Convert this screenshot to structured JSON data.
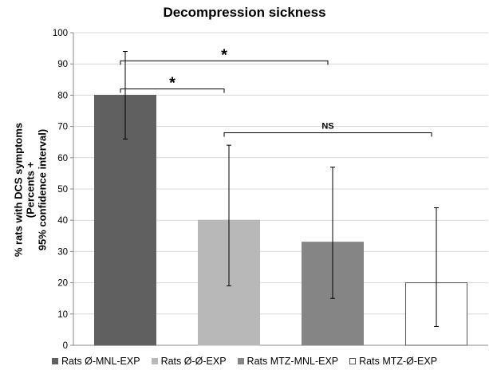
{
  "chart_data": {
    "type": "bar",
    "title": "Decompression sickness",
    "ylabel_lines": [
      "% rats with DCS symptoms",
      "(Percents +",
      "95% confidence interval)"
    ],
    "xlabel": "",
    "ylim": [
      0,
      100
    ],
    "yticks": [
      0,
      10,
      20,
      30,
      40,
      50,
      60,
      70,
      80,
      90,
      100
    ],
    "grid": true,
    "legend_position": "bottom",
    "categories": [
      "Rats Ø-MNL-EXP",
      "Rats Ø-Ø-EXP",
      "Rats MTZ-MNL-EXP",
      "Rats MTZ-Ø-EXP"
    ],
    "values": [
      80,
      40,
      33,
      20
    ],
    "ci_low": [
      66,
      19,
      15,
      6
    ],
    "ci_high": [
      94,
      64,
      57,
      44
    ],
    "colors": [
      "#606060",
      "#b8b8b8",
      "#858585",
      "#ffffff"
    ],
    "annotations": [
      {
        "from": 0,
        "to": 2,
        "y": 91,
        "label": "*"
      },
      {
        "from": 0,
        "to": 1,
        "y": 82,
        "label": "*"
      },
      {
        "from": 1,
        "to": 3,
        "y": 68,
        "label": "NS"
      }
    ]
  }
}
